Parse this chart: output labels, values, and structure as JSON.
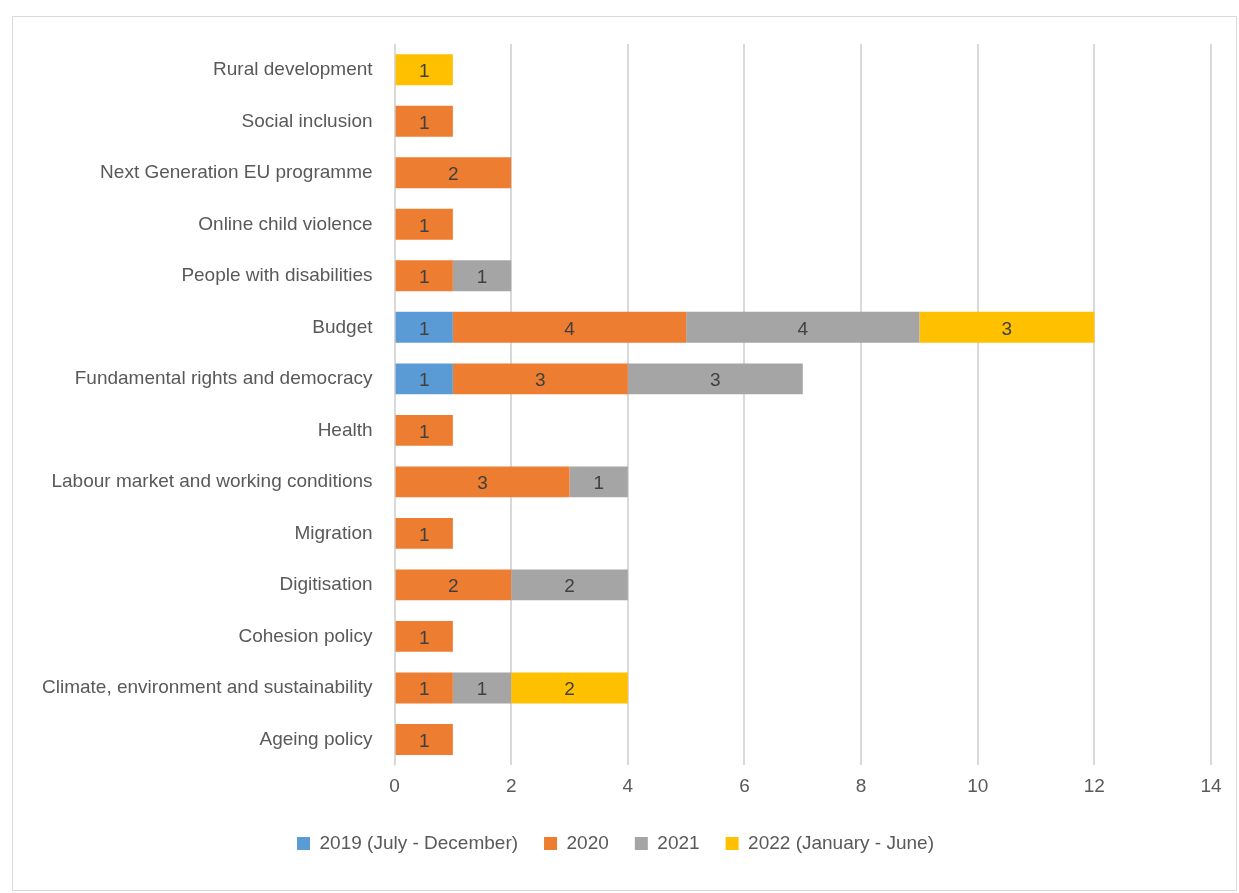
{
  "chart_data": {
    "type": "bar",
    "orientation": "horizontal",
    "stacked": true,
    "categories": [
      "Rural development",
      "Social inclusion",
      "Next Generation EU programme",
      "Online child violence",
      "People with disabilities",
      "Budget",
      "Fundamental rights and democracy",
      "Health",
      "Labour market and working conditions",
      "Migration",
      "Digitisation",
      "Cohesion policy",
      "Climate, environment and sustainability",
      "Ageing policy"
    ],
    "series": [
      {
        "name": "2019 (July - December)",
        "color": "#5b9bd5",
        "values": [
          null,
          null,
          null,
          null,
          null,
          1,
          1,
          null,
          null,
          null,
          null,
          null,
          null,
          null
        ]
      },
      {
        "name": "2020",
        "color": "#ed7d31",
        "values": [
          null,
          1,
          2,
          1,
          1,
          4,
          3,
          1,
          3,
          1,
          2,
          1,
          1,
          1
        ]
      },
      {
        "name": "2021",
        "color": "#a5a5a5",
        "values": [
          null,
          null,
          null,
          null,
          1,
          4,
          3,
          null,
          1,
          null,
          2,
          null,
          1,
          null
        ]
      },
      {
        "name": "2022 (January - June)",
        "color": "#ffc000",
        "values": [
          1,
          null,
          null,
          null,
          null,
          3,
          null,
          null,
          null,
          null,
          null,
          null,
          2,
          null
        ]
      }
    ],
    "xlim": [
      0,
      14
    ],
    "xticks": [
      0,
      2,
      4,
      6,
      8,
      10,
      12,
      14
    ],
    "grid": "x",
    "legend": "bottom",
    "data_labels": true
  }
}
